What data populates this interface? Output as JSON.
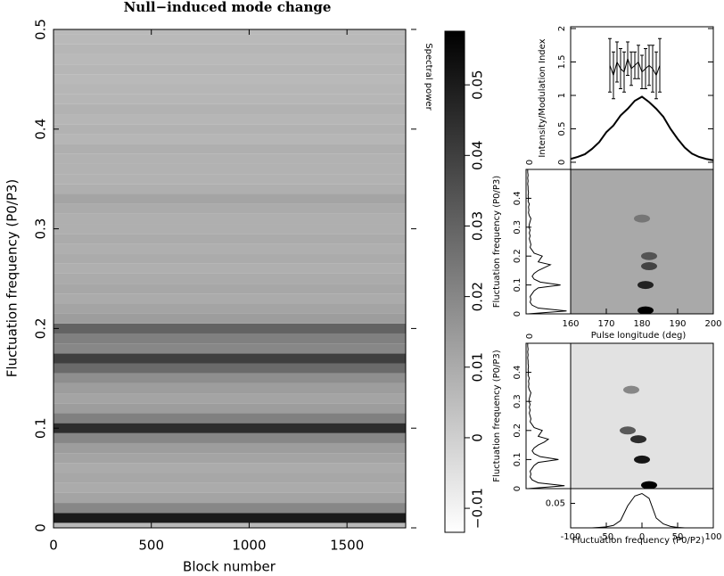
{
  "chart_data": [
    {
      "type": "heatmap",
      "title": "Null−induced mode change",
      "x_label": "Block number",
      "y_label": "Fluctuation frequency (P0/P3)",
      "xlim": [
        0,
        1800
      ],
      "xticks": [
        0,
        500,
        1000,
        1500
      ],
      "ylim": [
        0,
        0.5
      ],
      "yticks": [
        0,
        0.1,
        0.2,
        0.3,
        0.4,
        0.5
      ],
      "y": [
        0,
        0.01,
        0.02,
        0.03,
        0.04,
        0.05,
        0.06,
        0.07,
        0.08,
        0.09,
        0.1,
        0.11,
        0.12,
        0.13,
        0.14,
        0.15,
        0.16,
        0.17,
        0.18,
        0.19,
        0.2,
        0.21,
        0.22,
        0.23,
        0.24,
        0.25,
        0.26,
        0.27,
        0.28,
        0.29,
        0.3,
        0.31,
        0.32,
        0.33,
        0.34,
        0.35,
        0.36,
        0.37,
        0.38,
        0.39,
        0.4,
        0.41,
        0.42,
        0.43,
        0.44,
        0.45,
        0.46,
        0.47,
        0.48,
        0.49,
        0.5
      ],
      "values": [
        0.006,
        0.05,
        0.02,
        0.012,
        0.01,
        0.011,
        0.01,
        0.012,
        0.014,
        0.02,
        0.045,
        0.022,
        0.014,
        0.012,
        0.014,
        0.018,
        0.028,
        0.04,
        0.02,
        0.022,
        0.03,
        0.014,
        0.012,
        0.01,
        0.011,
        0.01,
        0.009,
        0.01,
        0.009,
        0.01,
        0.009,
        0.009,
        0.01,
        0.012,
        0.009,
        0.008,
        0.008,
        0.008,
        0.009,
        0.007,
        0.008,
        0.007,
        0.008,
        0.007,
        0.007,
        0.006,
        0.007,
        0.006,
        0.007,
        0.006,
        0.006
      ]
    },
    {
      "type": "colorbar",
      "label": "Spectral power",
      "ylim": [
        -0.0134,
        0.0576
      ],
      "yticks": [
        {
          "value": -0.01,
          "label": "−0.01"
        },
        0,
        0.01,
        0.02,
        0.03,
        0.04,
        0.05
      ]
    },
    {
      "type": "profile",
      "y_label": "Intensity/Modulation Index",
      "xlim": [
        160,
        200
      ],
      "ylim": [
        -0.107,
        2.027
      ],
      "yticks": [
        0,
        0.5,
        1,
        1.5,
        2
      ],
      "x": [
        160,
        162,
        164,
        166,
        168,
        170,
        172,
        174,
        176,
        178,
        180,
        182,
        184,
        186,
        188,
        190,
        192,
        194,
        196,
        198,
        200
      ],
      "values": [
        0.05,
        0.08,
        0.12,
        0.2,
        0.3,
        0.45,
        0.55,
        0.7,
        0.8,
        0.92,
        0.98,
        0.9,
        0.8,
        0.68,
        0.5,
        0.35,
        0.22,
        0.13,
        0.08,
        0.05,
        0.03
      ],
      "mod_x": [
        171,
        172,
        173,
        174,
        175,
        176,
        177,
        178,
        179,
        180,
        181,
        182,
        183,
        184,
        185
      ],
      "mod_values": [
        1.45,
        1.3,
        1.5,
        1.4,
        1.35,
        1.55,
        1.4,
        1.45,
        1.5,
        1.35,
        1.4,
        1.45,
        1.4,
        1.3,
        1.45
      ],
      "mod_errors": [
        0.4,
        0.35,
        0.3,
        0.3,
        0.3,
        0.25,
        0.25,
        0.2,
        0.25,
        0.25,
        0.3,
        0.3,
        0.35,
        0.35,
        0.4
      ]
    },
    {
      "type": "spots",
      "x_label": "Pulse longitude (deg)",
      "y_label": "Fluctuation frequency (P0/P3)",
      "xlim": [
        160,
        200
      ],
      "xticks": [
        160,
        170,
        180,
        190,
        200
      ],
      "ylim": [
        0,
        0.5
      ],
      "yticks": [
        0,
        0.1,
        0.2,
        0.3,
        0.4
      ],
      "spot_x": [
        181,
        181,
        182,
        182,
        180
      ],
      "spot_y": [
        0.012,
        0.1,
        0.165,
        0.2,
        0.33
      ],
      "spot_values": [
        1,
        0.8,
        0.6,
        0.5,
        0.3
      ],
      "side_xlim": [
        0,
        1.1
      ],
      "side_xticks": [
        0
      ],
      "side_y": [
        0,
        0.01,
        0.02,
        0.03,
        0.04,
        0.05,
        0.06,
        0.07,
        0.08,
        0.09,
        0.1,
        0.11,
        0.12,
        0.13,
        0.14,
        0.15,
        0.16,
        0.17,
        0.18,
        0.19,
        0.2,
        0.21,
        0.22,
        0.23,
        0.24,
        0.25,
        0.26,
        0.27,
        0.28,
        0.29,
        0.3,
        0.31,
        0.32,
        0.33,
        0.34,
        0.35,
        0.36,
        0.37,
        0.38,
        0.39,
        0.4,
        0.41,
        0.42,
        0.43,
        0.44,
        0.45,
        0.46,
        0.47,
        0.48,
        0.49,
        0.5
      ],
      "side_values": [
        0.05,
        1.0,
        0.3,
        0.15,
        0.1,
        0.12,
        0.1,
        0.15,
        0.2,
        0.3,
        0.85,
        0.35,
        0.2,
        0.15,
        0.2,
        0.3,
        0.45,
        0.6,
        0.3,
        0.35,
        0.4,
        0.2,
        0.15,
        0.1,
        0.12,
        0.1,
        0.08,
        0.1,
        0.08,
        0.1,
        0.07,
        0.08,
        0.1,
        0.12,
        0.08,
        0.06,
        0.07,
        0.06,
        0.08,
        0.05,
        0.06,
        0.05,
        0.06,
        0.05,
        0.05,
        0.04,
        0.05,
        0.04,
        0.05,
        0.04,
        0.04
      ]
    },
    {
      "type": "spots",
      "x_label": "Fluctuation frequency (P0/P2)",
      "y_label": "Fluctuation frequency (P0/P3)",
      "xlim": [
        -100,
        100
      ],
      "xticks": [
        -100,
        -50,
        0,
        50,
        100
      ],
      "ylim": [
        0,
        0.5
      ],
      "yticks": [
        0,
        0.1,
        0.2,
        0.3,
        0.4
      ],
      "spot_x": [
        -15,
        -20,
        -5,
        0,
        10
      ],
      "spot_y": [
        0.34,
        0.2,
        0.17,
        0.1,
        0.012
      ],
      "spot_values": [
        0.4,
        0.6,
        0.8,
        0.9,
        1
      ],
      "side_xlim": [
        0,
        1.1
      ],
      "side_xticks": [
        0
      ],
      "side_y": [
        0,
        0.01,
        0.02,
        0.03,
        0.04,
        0.05,
        0.06,
        0.07,
        0.08,
        0.09,
        0.1,
        0.11,
        0.12,
        0.13,
        0.14,
        0.15,
        0.16,
        0.17,
        0.18,
        0.19,
        0.2,
        0.21,
        0.22,
        0.23,
        0.24,
        0.25,
        0.26,
        0.27,
        0.28,
        0.29,
        0.3,
        0.31,
        0.32,
        0.33,
        0.34,
        0.35,
        0.36,
        0.37,
        0.38,
        0.39,
        0.4,
        0.41,
        0.42,
        0.43,
        0.44,
        0.45,
        0.46,
        0.47,
        0.48,
        0.49,
        0.5
      ],
      "side_values": [
        0.05,
        0.95,
        0.3,
        0.15,
        0.1,
        0.12,
        0.1,
        0.15,
        0.2,
        0.3,
        0.8,
        0.35,
        0.2,
        0.15,
        0.2,
        0.3,
        0.45,
        0.55,
        0.3,
        0.35,
        0.4,
        0.2,
        0.15,
        0.1,
        0.12,
        0.1,
        0.08,
        0.1,
        0.08,
        0.1,
        0.07,
        0.08,
        0.1,
        0.12,
        0.08,
        0.06,
        0.07,
        0.06,
        0.08,
        0.05,
        0.06,
        0.05,
        0.06,
        0.05,
        0.05,
        0.04,
        0.05,
        0.04,
        0.05,
        0.04,
        0.04
      ],
      "profile_x": [
        -100,
        -90,
        -80,
        -70,
        -60,
        -50,
        -40,
        -30,
        -20,
        -10,
        0,
        10,
        20,
        30,
        40,
        50,
        60,
        70,
        80,
        90,
        100
      ],
      "profile_values": [
        0,
        0,
        0,
        0,
        0.001,
        0.002,
        0.005,
        0.015,
        0.045,
        0.065,
        0.07,
        0.06,
        0.02,
        0.008,
        0.003,
        0.001,
        0,
        0,
        0,
        0,
        0
      ],
      "profile_ylim": [
        0,
        0.08
      ],
      "profile_yticks": [
        0.05
      ]
    }
  ]
}
